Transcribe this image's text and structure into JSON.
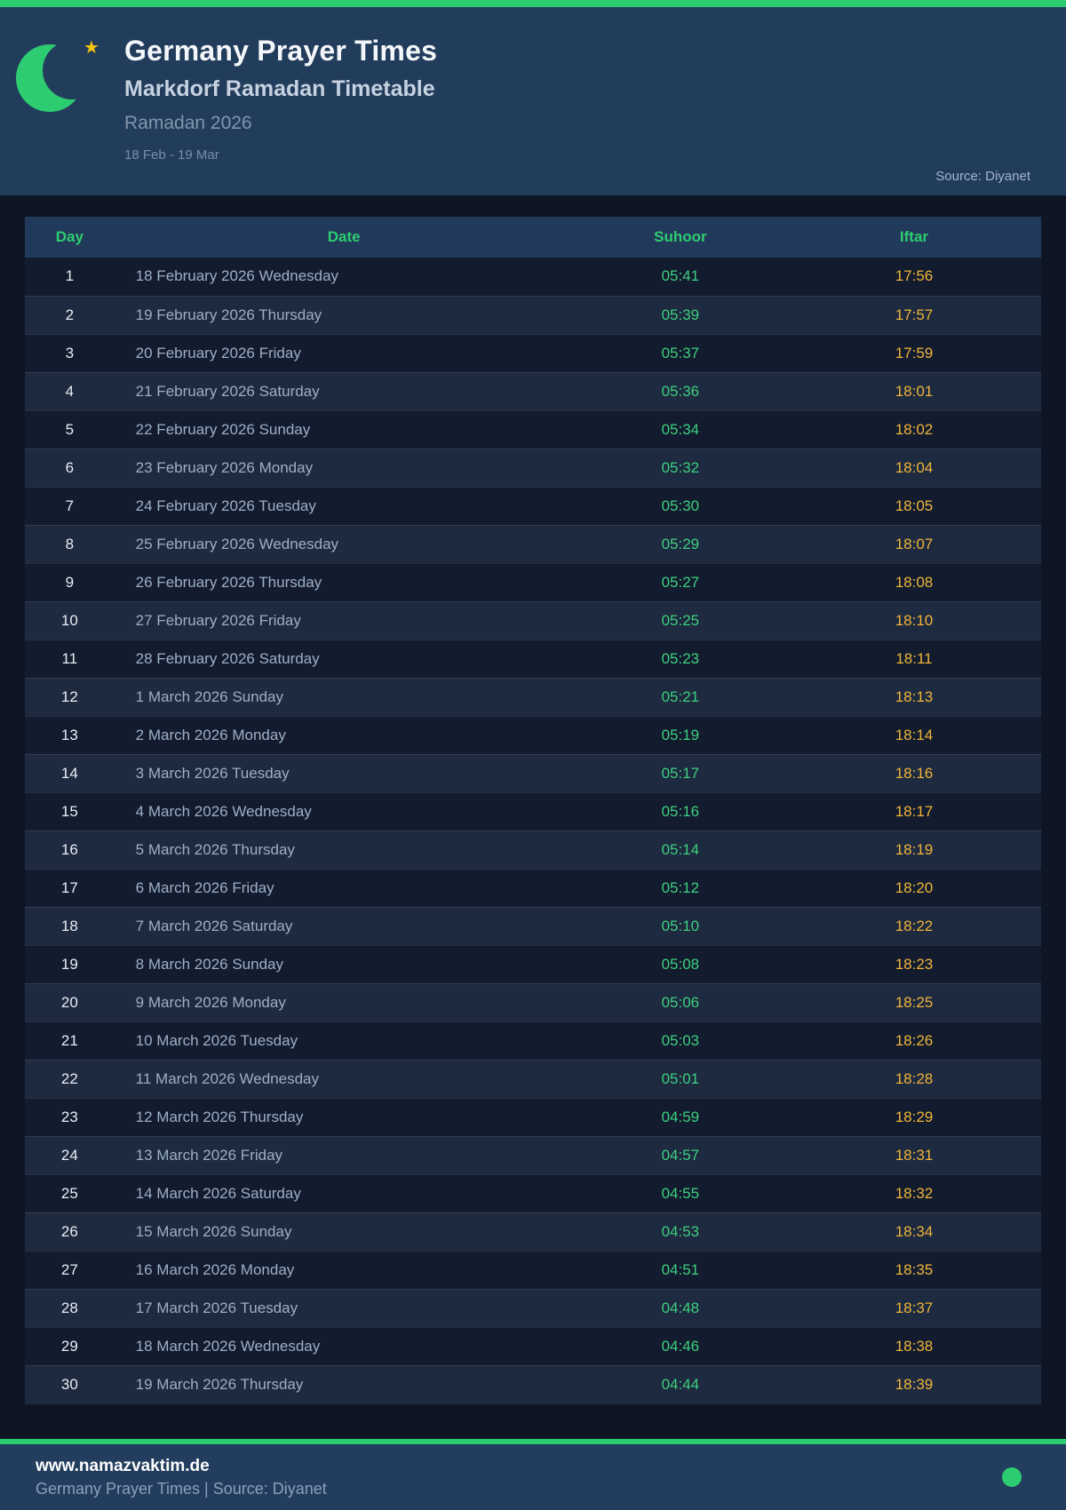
{
  "colors": {
    "accent_green": "#2ecc71",
    "suhoor_green": "#3ecf7f",
    "iftar_amber": "#f0b43a",
    "star_gold": "#f1c40f",
    "header_navy": "#223c5c",
    "page_bg": "#0e1626",
    "row_even_bg": "#1d2a3f",
    "row_odd_bg": "#121c2e",
    "table_header_bg": "#21395a",
    "footer_navy": "#223d5e"
  },
  "header": {
    "title": "Germany Prayer Times",
    "subtitle": "Markdorf Ramadan Timetable",
    "period": "Ramadan 2026",
    "date_range": "18 Feb - 19 Mar",
    "source": "Source: Diyanet",
    "star_glyph": "★"
  },
  "table": {
    "columns": [
      "Day",
      "Date",
      "Suhoor",
      "Iftar"
    ],
    "rows": [
      {
        "day": "1",
        "date": "18 February 2026 Wednesday",
        "suhoor": "05:41",
        "iftar": "17:56"
      },
      {
        "day": "2",
        "date": "19 February 2026 Thursday",
        "suhoor": "05:39",
        "iftar": "17:57"
      },
      {
        "day": "3",
        "date": "20 February 2026 Friday",
        "suhoor": "05:37",
        "iftar": "17:59"
      },
      {
        "day": "4",
        "date": "21 February 2026 Saturday",
        "suhoor": "05:36",
        "iftar": "18:01"
      },
      {
        "day": "5",
        "date": "22 February 2026 Sunday",
        "suhoor": "05:34",
        "iftar": "18:02"
      },
      {
        "day": "6",
        "date": "23 February 2026 Monday",
        "suhoor": "05:32",
        "iftar": "18:04"
      },
      {
        "day": "7",
        "date": "24 February 2026 Tuesday",
        "suhoor": "05:30",
        "iftar": "18:05"
      },
      {
        "day": "8",
        "date": "25 February 2026 Wednesday",
        "suhoor": "05:29",
        "iftar": "18:07"
      },
      {
        "day": "9",
        "date": "26 February 2026 Thursday",
        "suhoor": "05:27",
        "iftar": "18:08"
      },
      {
        "day": "10",
        "date": "27 February 2026 Friday",
        "suhoor": "05:25",
        "iftar": "18:10"
      },
      {
        "day": "11",
        "date": "28 February 2026 Saturday",
        "suhoor": "05:23",
        "iftar": "18:11"
      },
      {
        "day": "12",
        "date": "1 March 2026 Sunday",
        "suhoor": "05:21",
        "iftar": "18:13"
      },
      {
        "day": "13",
        "date": "2 March 2026 Monday",
        "suhoor": "05:19",
        "iftar": "18:14"
      },
      {
        "day": "14",
        "date": "3 March 2026 Tuesday",
        "suhoor": "05:17",
        "iftar": "18:16"
      },
      {
        "day": "15",
        "date": "4 March 2026 Wednesday",
        "suhoor": "05:16",
        "iftar": "18:17"
      },
      {
        "day": "16",
        "date": "5 March 2026 Thursday",
        "suhoor": "05:14",
        "iftar": "18:19"
      },
      {
        "day": "17",
        "date": "6 March 2026 Friday",
        "suhoor": "05:12",
        "iftar": "18:20"
      },
      {
        "day": "18",
        "date": "7 March 2026 Saturday",
        "suhoor": "05:10",
        "iftar": "18:22"
      },
      {
        "day": "19",
        "date": "8 March 2026 Sunday",
        "suhoor": "05:08",
        "iftar": "18:23"
      },
      {
        "day": "20",
        "date": "9 March 2026 Monday",
        "suhoor": "05:06",
        "iftar": "18:25"
      },
      {
        "day": "21",
        "date": "10 March 2026 Tuesday",
        "suhoor": "05:03",
        "iftar": "18:26"
      },
      {
        "day": "22",
        "date": "11 March 2026 Wednesday",
        "suhoor": "05:01",
        "iftar": "18:28"
      },
      {
        "day": "23",
        "date": "12 March 2026 Thursday",
        "suhoor": "04:59",
        "iftar": "18:29"
      },
      {
        "day": "24",
        "date": "13 March 2026 Friday",
        "suhoor": "04:57",
        "iftar": "18:31"
      },
      {
        "day": "25",
        "date": "14 March 2026 Saturday",
        "suhoor": "04:55",
        "iftar": "18:32"
      },
      {
        "day": "26",
        "date": "15 March 2026 Sunday",
        "suhoor": "04:53",
        "iftar": "18:34"
      },
      {
        "day": "27",
        "date": "16 March 2026 Monday",
        "suhoor": "04:51",
        "iftar": "18:35"
      },
      {
        "day": "28",
        "date": "17 March 2026 Tuesday",
        "suhoor": "04:48",
        "iftar": "18:37"
      },
      {
        "day": "29",
        "date": "18 March 2026 Wednesday",
        "suhoor": "04:46",
        "iftar": "18:38"
      },
      {
        "day": "30",
        "date": "19 March 2026 Thursday",
        "suhoor": "04:44",
        "iftar": "18:39"
      }
    ]
  },
  "footer": {
    "website": "www.namazvaktim.de",
    "tagline": "Germany Prayer Times | Source: Diyanet"
  }
}
